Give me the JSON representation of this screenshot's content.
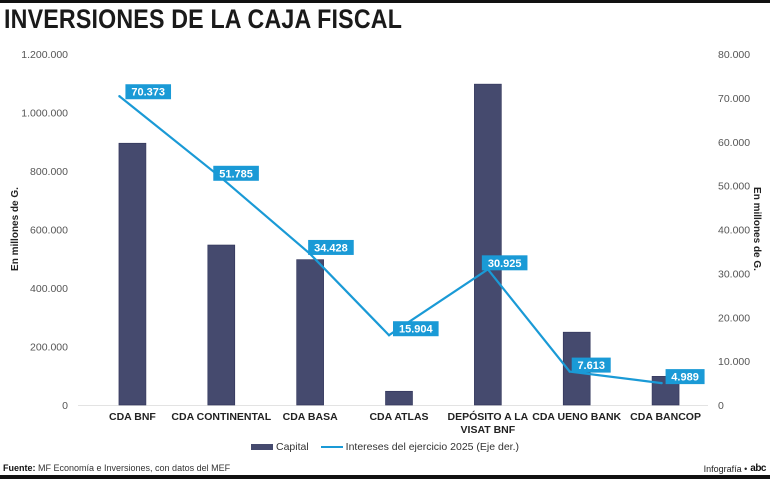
{
  "header": {
    "title": "INVERSIONES DE LA CAJA FISCAL"
  },
  "chart_data": {
    "type": "bar",
    "title": "INVERSIONES DE LA CAJA FISCAL",
    "categories": [
      "CDA BNF",
      "CDA CONTINENTAL",
      "CDA BASA",
      "CDA ATLAS",
      "DEPÓSITO A LA VISAT BNF",
      "CDA UENO BANK",
      "CDA BANCOP"
    ],
    "category_lines": [
      [
        "CDA BNF"
      ],
      [
        "CDA CONTINENTAL"
      ],
      [
        "CDA BASA"
      ],
      [
        "CDA ATLAS"
      ],
      [
        "DEPÓSITO A LA",
        "VISAT BNF"
      ],
      [
        "CDA UENO BANK"
      ],
      [
        "CDA BANCOP"
      ]
    ],
    "series": [
      {
        "name": "Capital",
        "type": "bar",
        "axis": "left",
        "color": "#454a6e",
        "values": [
          895000,
          547000,
          497000,
          47000,
          1097000,
          249000,
          98000
        ]
      },
      {
        "name": "Intereses del ejercicio 2025 (Eje der.)",
        "type": "line",
        "axis": "right",
        "color": "#1a9ad6",
        "values": [
          70373,
          51785,
          34428,
          15904,
          30925,
          7613,
          4989
        ],
        "data_labels": [
          "70.373",
          "51.785",
          "34.428",
          "15.904",
          "30.925",
          "7.613",
          "4.989"
        ]
      }
    ],
    "ylabel": "En millones de G.",
    "ylabel_right": "En millones de G.",
    "ylim": [
      0,
      1200000
    ],
    "ylim_right": [
      0,
      80000
    ],
    "yticks": [
      "0",
      "200.000",
      "400.000",
      "600.000",
      "800.000",
      "1.000.000",
      "1.200.000"
    ],
    "yticks_right": [
      "0",
      "10.000",
      "20.000",
      "30.000",
      "40.000",
      "50.000",
      "60.000",
      "70.000",
      "80.000"
    ],
    "grid": false,
    "legend_position": "bottom-center"
  },
  "legend": {
    "capital": "Capital",
    "intereses": "Intereses del ejercicio 2025 (Eje der.)"
  },
  "footer": {
    "source_label": "Fuente:",
    "source_text": " MF Economía e Inversiones, con datos del MEF",
    "credit": "Infografía •",
    "logo": "abc"
  }
}
